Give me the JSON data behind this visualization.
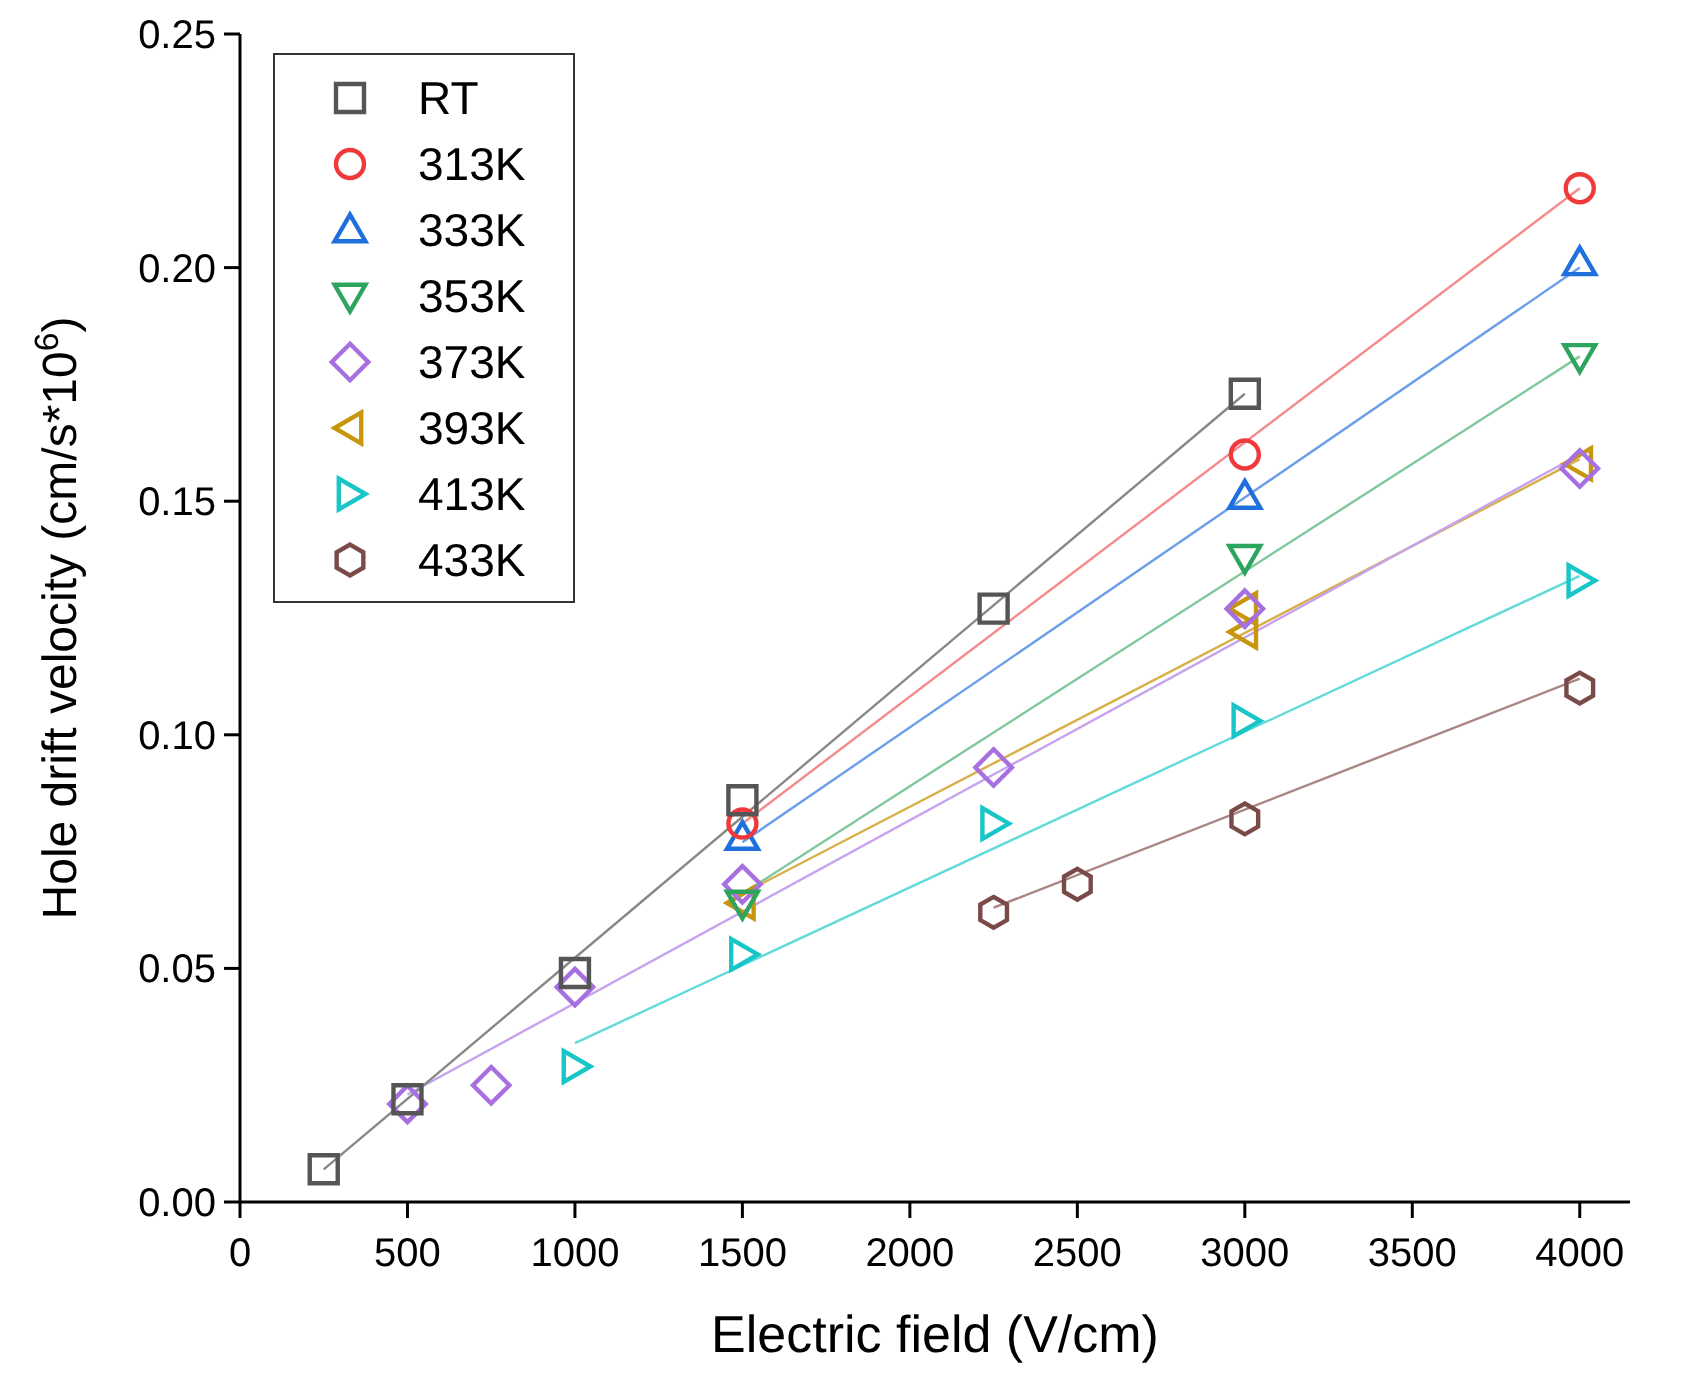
{
  "chart_data": {
    "type": "scatter",
    "xlabel": "Electric field (V/cm)",
    "ylabel": "Hole drift velocity (cm/s*10$^{6}$)",
    "xlim": [
      0,
      4150
    ],
    "ylim": [
      0,
      0.25
    ],
    "xticks": [
      0,
      500,
      1000,
      1500,
      2000,
      2500,
      3000,
      3500,
      4000
    ],
    "yticks": [
      {
        "value": 0,
        "label": "0.00"
      },
      0.05,
      {
        "value": 0.1,
        "label": "0.10"
      },
      0.15,
      {
        "value": 0.2,
        "label": "0.20"
      },
      0.25
    ],
    "grid": false,
    "legend": "top left",
    "series": [
      {
        "name": "RT",
        "color": "#555555",
        "marker": "square",
        "x": [
          250,
          500,
          1000,
          1500,
          2250,
          3000
        ],
        "values": [
          0.007,
          0.022,
          0.049,
          0.086,
          0.127,
          0.173
        ]
      },
      {
        "name": "313K",
        "color": "#f0393b",
        "marker": "circle",
        "x": [
          1500,
          3000,
          4000
        ],
        "values": [
          0.081,
          0.16,
          0.217
        ]
      },
      {
        "name": "333K",
        "color": "#1f6fdc",
        "marker": "triangle",
        "x": [
          1500,
          3000,
          4000
        ],
        "values": [
          0.078,
          0.151,
          0.201
        ]
      },
      {
        "name": "353K",
        "color": "#2ea55e",
        "marker": "triangle-down",
        "x": [
          1500,
          3000,
          4000
        ],
        "values": [
          0.064,
          0.138,
          0.181
        ]
      },
      {
        "name": "373K",
        "color": "#a86fe0",
        "marker": "diamond",
        "x": [
          500,
          750,
          1000,
          1500,
          2250,
          3000,
          4000
        ],
        "values": [
          0.021,
          0.025,
          0.046,
          0.068,
          0.093,
          0.127,
          0.157
        ]
      },
      {
        "name": "393K",
        "color": "#c8960c",
        "marker": "triangle-left",
        "x": [
          1500,
          3000,
          3000,
          4000
        ],
        "values": [
          0.064,
          0.127,
          0.122,
          0.158
        ]
      },
      {
        "name": "413K",
        "color": "#18c6c8",
        "marker": "triangle-right",
        "x": [
          1000,
          1500,
          2250,
          3000,
          4000
        ],
        "values": [
          0.029,
          0.053,
          0.081,
          0.103,
          0.133
        ]
      },
      {
        "name": "433K",
        "color": "#7a4a48",
        "x": [
          2250,
          2500,
          3000,
          4000
        ],
        "values": [
          0.062,
          0.068,
          0.082,
          0.11
        ]
      },
      {
        "type": "line",
        "color": "#888888",
        "marker": "none",
        "x": [
          250,
          3000
        ],
        "values": [
          0.007,
          0.173
        ]
      },
      {
        "type": "line",
        "color": "#f58a8a",
        "marker": "none",
        "x": [
          1500,
          4000
        ],
        "values": [
          0.081,
          0.217
        ]
      },
      {
        "type": "line",
        "color": "#6a9ee8",
        "marker": "none",
        "x": [
          1500,
          4000
        ],
        "values": [
          0.077,
          0.2
        ]
      },
      {
        "type": "line",
        "color": "#7fc79c",
        "marker": "none",
        "x": [
          1500,
          4000
        ],
        "values": [
          0.066,
          0.181
        ]
      },
      {
        "type": "line",
        "color": "#c6a3ee",
        "marker": "none",
        "x": [
          500,
          4000
        ],
        "values": [
          0.023,
          0.16
        ]
      },
      {
        "type": "line",
        "color": "#d8b04a",
        "marker": "none",
        "x": [
          1500,
          4000
        ],
        "values": [
          0.066,
          0.159
        ]
      },
      {
        "type": "line",
        "color": "#62dadb",
        "marker": "none",
        "x": [
          1000,
          4000
        ],
        "values": [
          0.034,
          0.134
        ]
      },
      {
        "type": "line",
        "color": "#a98684",
        "marker": "none",
        "x": [
          2250,
          4000
        ],
        "values": [
          0.063,
          0.112
        ]
      }
    ]
  }
}
